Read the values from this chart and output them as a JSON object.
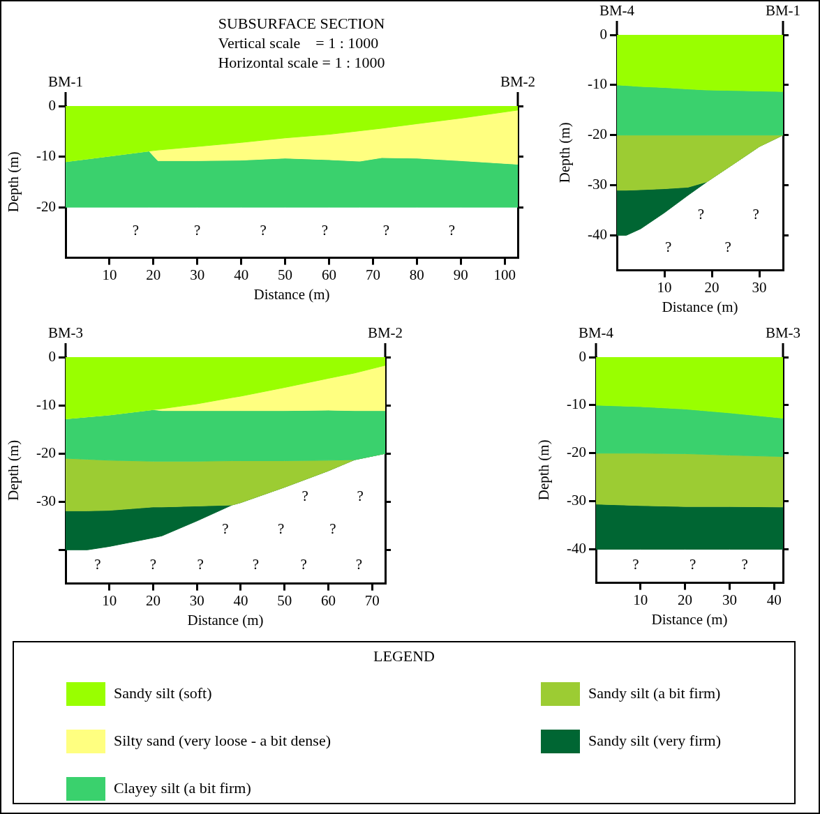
{
  "chart_data": [
    {
      "type": "area",
      "title": "SUBSURFACE SECTION",
      "subtitle": "Vertical scale    = 1 : 1000\nHorizontal scale = 1 : 1000",
      "xlabel": "Distance (m)",
      "ylabel": "Depth (m)",
      "stacked": true,
      "x": [
        0,
        10,
        19,
        21,
        30,
        40,
        50,
        60,
        67,
        72,
        80,
        90,
        103
      ],
      "xlim": [
        0,
        103
      ],
      "xticks": [
        10,
        20,
        30,
        40,
        50,
        60,
        70,
        80,
        90,
        100
      ],
      "ylim": [
        -30,
        0
      ],
      "yticks": [
        0,
        -10,
        -20
      ],
      "series": [
        {
          "color": "#99ff00",
          "values": [
            -11,
            -9.9,
            -8.9,
            -8.7,
            -8,
            -7.2,
            -6.3,
            -5.6,
            -4.9,
            -4.4,
            -3.5,
            -2.4,
            -0.8
          ]
        },
        {
          "color": "#ffff80",
          "values": [
            0,
            0,
            0,
            -2.1,
            -2.8,
            -3.5,
            -4,
            -5,
            -6,
            -5.8,
            -6.8,
            -8.4,
            -10.7
          ]
        },
        {
          "color": "#3ad16d",
          "values": [
            -9,
            -10.1,
            -11.1,
            -9.2,
            -9.2,
            -9.3,
            -9.7,
            -9.4,
            -9.1,
            -9.8,
            -9.7,
            -9.2,
            -8.5
          ]
        }
      ],
      "annotations": [
        "BM-1",
        "BM-2",
        "?",
        "?",
        "?",
        "?",
        "?",
        "?"
      ]
    },
    {
      "type": "area",
      "xlabel": "Distance (m)",
      "ylabel": "Depth (m)",
      "stacked": true,
      "x": [
        0,
        2,
        5,
        10,
        15,
        19,
        25,
        30,
        35
      ],
      "xlim": [
        0,
        35
      ],
      "xticks": [
        10,
        20,
        30
      ],
      "ylim": [
        -47,
        0
      ],
      "yticks": [
        0,
        -10,
        -20,
        -30,
        -40
      ],
      "series": [
        {
          "color": "#99ff00",
          "values": [
            -10,
            -10.1,
            -10.3,
            -10.5,
            -10.8,
            -11,
            -11.1,
            -11.2,
            -11.3
          ]
        },
        {
          "color": "#3ad16d",
          "values": [
            -10,
            -9.9,
            -9.7,
            -9.5,
            -9.2,
            -9,
            -8.9,
            -8.8,
            -8.7
          ]
        },
        {
          "color": "#9ccc33",
          "values": [
            -11,
            -11,
            -10.9,
            -10.7,
            -10.4,
            -9.3,
            -5.5,
            -2.3,
            0
          ]
        },
        {
          "color": "#006633",
          "values": [
            -9,
            -9,
            -7.8,
            -4.8,
            -1.6,
            0,
            0,
            0,
            0
          ]
        }
      ],
      "annotations": [
        "BM-4",
        "BM-1",
        "?",
        "?",
        "?",
        "?"
      ]
    },
    {
      "type": "area",
      "xlabel": "Distance (m)",
      "ylabel": "Depth (m)",
      "stacked": true,
      "legend": "bottom",
      "legend_title": "LEGEND",
      "x": [
        0,
        5,
        10,
        20,
        22,
        30,
        38,
        40,
        50,
        60,
        66,
        73
      ],
      "xlim": [
        0,
        73
      ],
      "xticks": [
        10,
        20,
        30,
        40,
        50,
        60,
        70
      ],
      "ylim": [
        -47,
        0
      ],
      "yticks": [
        0,
        -10,
        -20,
        -30,
        {
          "value": -40,
          "label": null
        }
      ],
      "series": [
        {
          "name": "Sandy silt (soft)",
          "color": "#99ff00",
          "values": [
            -12.8,
            -12.4,
            -12,
            -10.9,
            -10.7,
            -9.7,
            -8.4,
            -8.1,
            -6.3,
            -4.4,
            -3.3,
            -1.7
          ]
        },
        {
          "name": "Silty sand (very loose - a bit dense)",
          "color": "#ffff80",
          "values": [
            0,
            0,
            0,
            0,
            -0.4,
            -1.4,
            -2.7,
            -3,
            -4.8,
            -6.6,
            -7.8,
            -9.4
          ]
        },
        {
          "name": "Clayey silt (a bit firm)",
          "color": "#3ad16d",
          "values": [
            -8.2,
            -8.8,
            -9.4,
            -10.7,
            -10.5,
            -10.5,
            -10.4,
            -10.4,
            -10.4,
            -10.4,
            -10.2,
            -8.9
          ]
        },
        {
          "name": "Sandy silt (a bit firm)",
          "color": "#9ccc33",
          "values": [
            -10.9,
            -10.7,
            -10.4,
            -9.5,
            -9.5,
            -9.3,
            -9.2,
            -8.7,
            -5.5,
            -2.2,
            0,
            0
          ]
        },
        {
          "name": "Sandy silt (very firm)",
          "color": "#006633",
          "values": [
            -8.1,
            -8.1,
            -7.5,
            -6.4,
            -6,
            -3.1,
            0,
            0,
            0,
            0,
            0,
            0
          ]
        }
      ],
      "annotations": [
        "BM-3",
        "BM-2",
        "?",
        "?",
        "?",
        "?",
        "?",
        "?",
        "?",
        "?",
        "?",
        "?",
        "?"
      ]
    },
    {
      "type": "area",
      "xlabel": "Distance (m)",
      "ylabel": "Depth (m)",
      "stacked": true,
      "x": [
        0,
        10,
        20,
        30,
        42
      ],
      "xlim": [
        0,
        42
      ],
      "xticks": [
        10,
        20,
        30,
        40
      ],
      "ylim": [
        -47,
        0
      ],
      "yticks": [
        0,
        -10,
        -20,
        -30,
        -40
      ],
      "series": [
        {
          "color": "#99ff00",
          "values": [
            -10,
            -10.3,
            -10.8,
            -11.6,
            -12.7
          ]
        },
        {
          "color": "#3ad16d",
          "values": [
            -10,
            -9.7,
            -9.3,
            -8.8,
            -8
          ]
        },
        {
          "color": "#9ccc33",
          "values": [
            -10.6,
            -10.9,
            -11,
            -10.7,
            -10.5
          ]
        },
        {
          "color": "#006633",
          "values": [
            -9.4,
            -9.1,
            -8.9,
            -8.9,
            -8.8
          ]
        }
      ],
      "annotations": [
        "BM-4",
        "BM-3",
        "?",
        "?",
        "?"
      ]
    }
  ]
}
